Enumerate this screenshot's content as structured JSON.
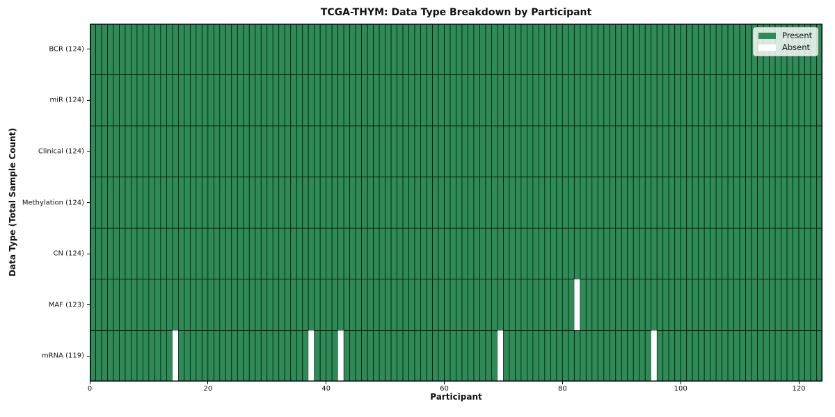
{
  "chart_data": {
    "type": "heatmap",
    "title": "TCGA-THYM: Data Type Breakdown by Participant",
    "xlabel": "Participant",
    "ylabel": "Data Type (Total Sample Count)",
    "n_participants": 124,
    "xlim": [
      0,
      124
    ],
    "x_ticks": [
      0,
      20,
      40,
      60,
      80,
      100,
      120
    ],
    "rows": [
      {
        "label": "BCR (124)",
        "data_type": "BCR",
        "present_count": 124,
        "absent_participants": []
      },
      {
        "label": "miR (124)",
        "data_type": "miR",
        "present_count": 124,
        "absent_participants": []
      },
      {
        "label": "Clinical (124)",
        "data_type": "Clinical",
        "present_count": 124,
        "absent_participants": []
      },
      {
        "label": "Methylation (124)",
        "data_type": "Methylation",
        "present_count": 124,
        "absent_participants": []
      },
      {
        "label": "CN (124)",
        "data_type": "CN",
        "present_count": 124,
        "absent_participants": []
      },
      {
        "label": "MAF (123)",
        "data_type": "MAF",
        "present_count": 123,
        "absent_participants": [
          82
        ]
      },
      {
        "label": "mRNA (119)",
        "data_type": "mRNA",
        "present_count": 119,
        "absent_participants": [
          14,
          37,
          42,
          69,
          95
        ]
      }
    ],
    "legend": [
      {
        "label": "Present",
        "color": "#2e8b57"
      },
      {
        "label": "Absent",
        "color": "#ffffff"
      }
    ],
    "colors": {
      "present": "#2e8b57",
      "absent": "#ffffff",
      "cell_edge": "rgba(0,0,0,0.8)",
      "spine": "#000000"
    },
    "legend_position": "upper right",
    "grid": false
  }
}
